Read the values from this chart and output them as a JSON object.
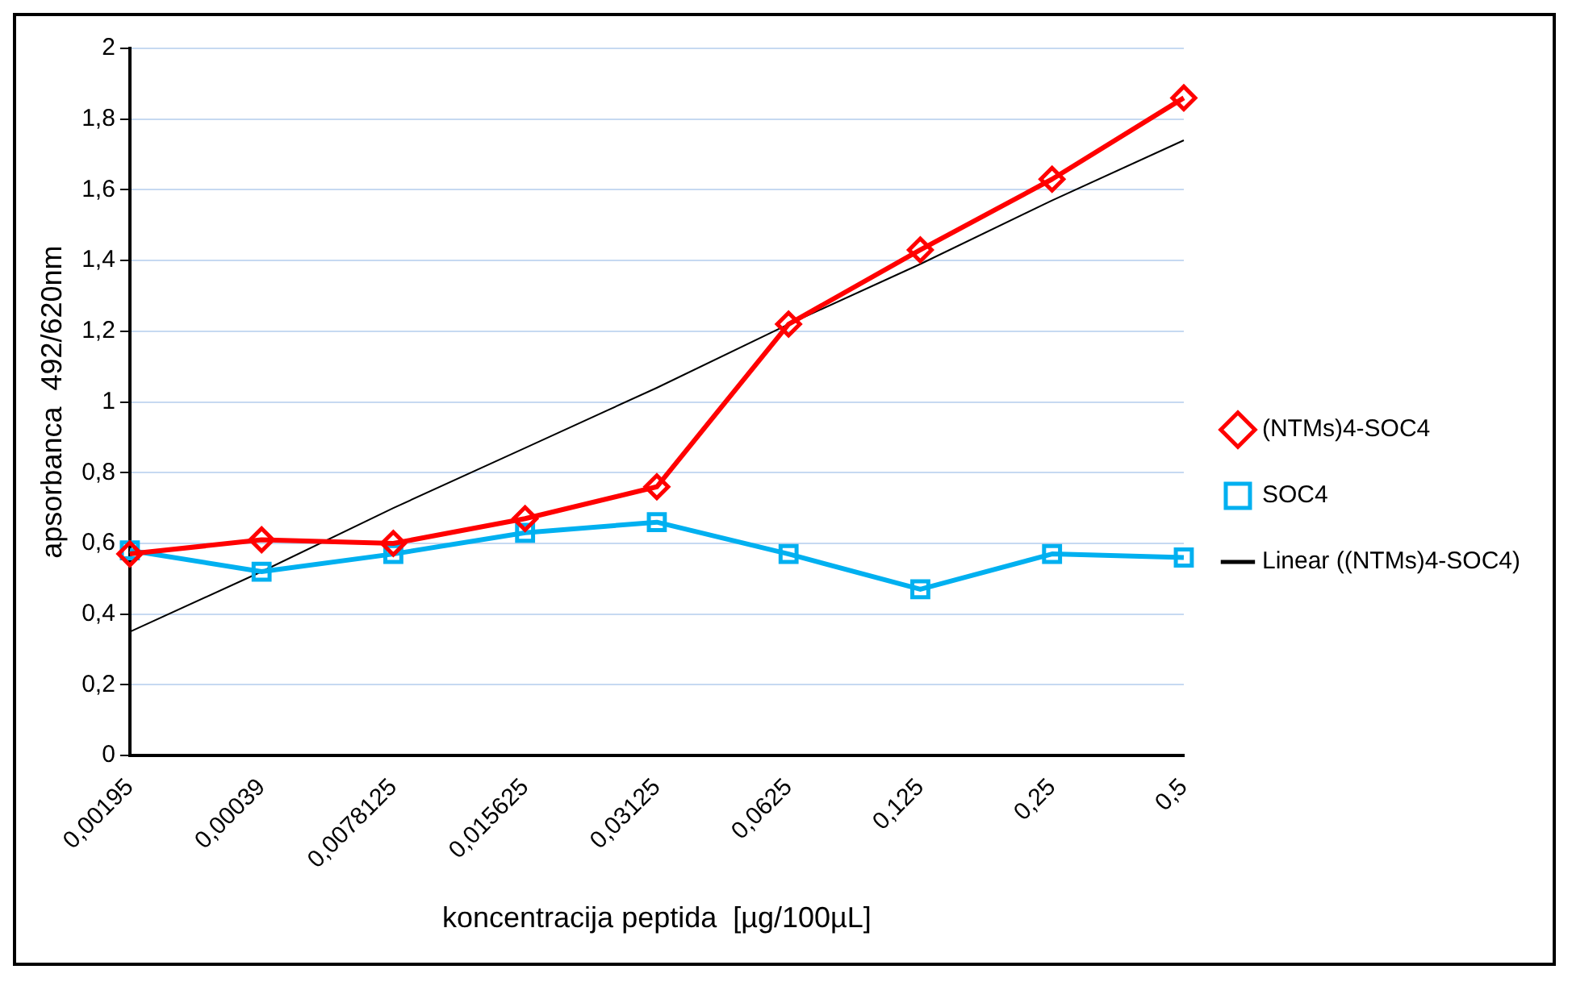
{
  "chart_data": {
    "type": "line",
    "xlabel": "koncentracija peptida  [µg/100µL]",
    "ylabel": "apsorbanca  492/620nm",
    "categories": [
      "0,00195",
      "0,00039",
      "0,0078125",
      "0,015625",
      "0,03125",
      "0,0625",
      "0,125",
      "0,25",
      "0,5"
    ],
    "series": [
      {
        "name": "(NTMs)4-SOC4",
        "color": "#ff0000",
        "marker": "diamond",
        "values": [
          0.57,
          0.61,
          0.6,
          0.67,
          0.76,
          1.22,
          1.43,
          1.63,
          1.86
        ]
      },
      {
        "name": "SOC4",
        "color": "#00b0f0",
        "marker": "square",
        "values": [
          0.58,
          0.52,
          0.57,
          0.63,
          0.66,
          0.57,
          0.47,
          0.57,
          0.56
        ]
      },
      {
        "name": "Linear ((NTMs)4-SOC4)",
        "color": "#000000",
        "marker": "none",
        "values": [
          0.35,
          0.52,
          0.7,
          0.87,
          1.04,
          1.22,
          1.39,
          1.57,
          1.74
        ]
      }
    ],
    "ylim": [
      0,
      2
    ],
    "yticks": [
      0,
      {
        "value": 0.2,
        "label": "0,2"
      },
      {
        "value": 0.4,
        "label": "0,4"
      },
      {
        "value": 0.6,
        "label": "0,6"
      },
      {
        "value": 0.8,
        "label": "0,8"
      },
      1,
      {
        "value": 1.2,
        "label": "1,2"
      },
      {
        "value": 1.4,
        "label": "1,4"
      },
      {
        "value": 1.6,
        "label": "1,6"
      },
      {
        "value": 1.8,
        "label": "1,8"
      },
      2
    ],
    "grid": "y",
    "legend": "right"
  }
}
